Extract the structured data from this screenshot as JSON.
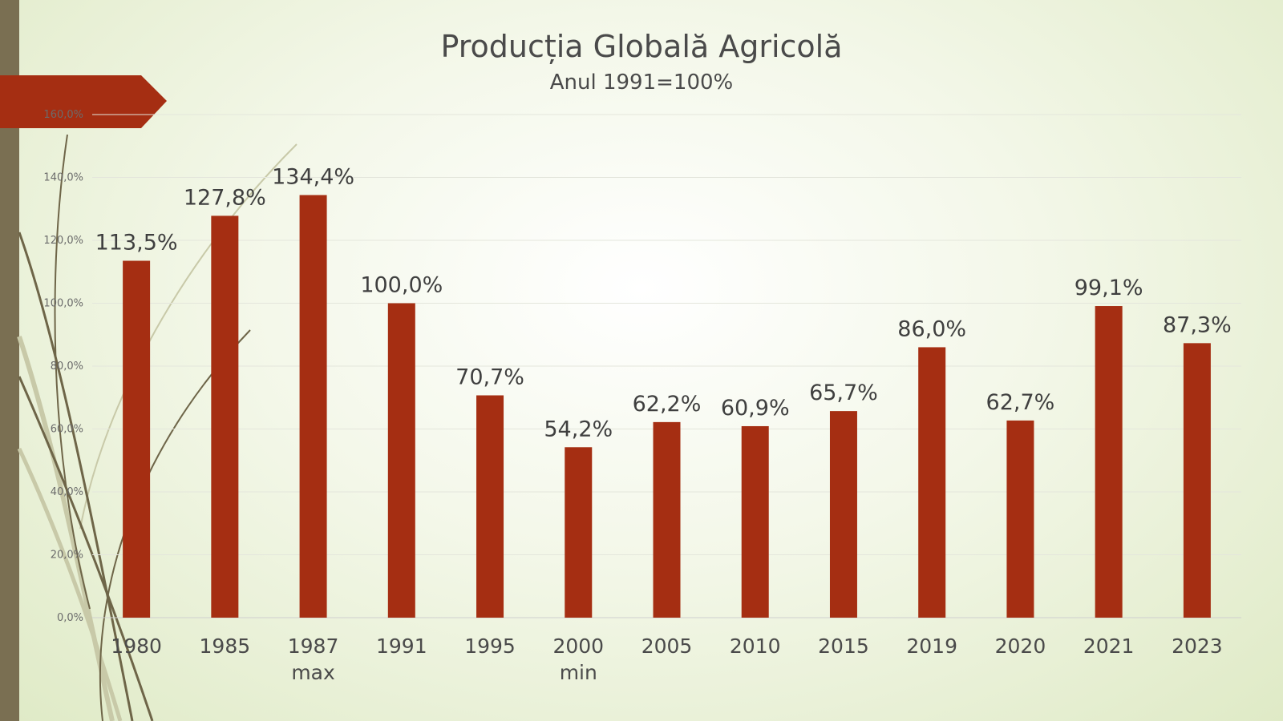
{
  "chart_data": {
    "type": "bar",
    "title": "Producția Globală Agricolă",
    "subtitle": "Anul 1991=100%",
    "xlabel": "",
    "ylabel": "",
    "categories": [
      "1980",
      "1985",
      "1987",
      "1991",
      "1995",
      "2000",
      "2005",
      "2010",
      "2015",
      "2019",
      "2020",
      "2021",
      "2023"
    ],
    "category_notes": [
      "",
      "",
      "max",
      "",
      "",
      "min",
      "",
      "",
      "",
      "",
      "",
      "",
      ""
    ],
    "values": [
      113.5,
      127.8,
      134.4,
      100.0,
      70.7,
      54.2,
      62.2,
      60.9,
      65.7,
      86.0,
      62.7,
      99.1,
      87.3
    ],
    "data_labels": [
      "113,5%",
      "127,8%",
      "134,4%",
      "100,0%",
      "70,7%",
      "54,2%",
      "62,2%",
      "60,9%",
      "65,7%",
      "86,0%",
      "62,7%",
      "99,1%",
      "87,3%"
    ],
    "y_ticks": [
      0,
      20,
      40,
      60,
      80,
      100,
      120,
      140,
      160
    ],
    "y_tick_labels": [
      "0,0%",
      "20,0%",
      "40,0%",
      "60,0%",
      "80,0%",
      "100,0%",
      "120,0%",
      "140,0%",
      "160,0%"
    ],
    "ylim": [
      0,
      160
    ],
    "grid": true,
    "legend": "none",
    "bar_color": "#a52e12"
  },
  "theme": {
    "sidebar_color": "#7a6f52",
    "banner_color": "#a52e12",
    "vine_color": "#6e6548",
    "vine_light_color": "#c8c9a8"
  }
}
